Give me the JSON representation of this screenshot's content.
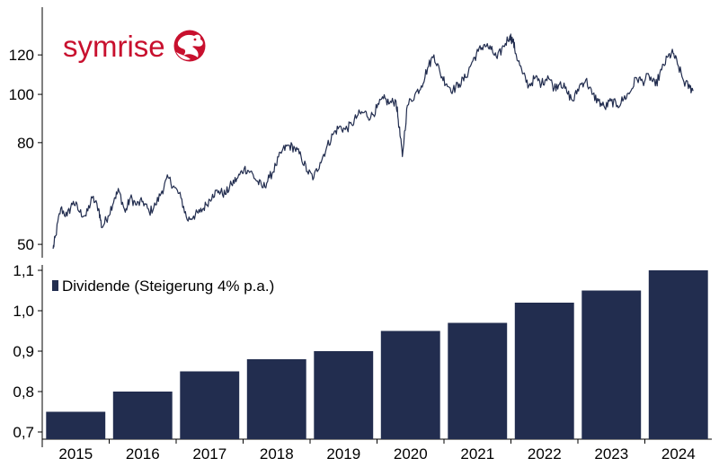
{
  "logo": {
    "text": "symrise",
    "color": "#c8102e"
  },
  "chart_data": [
    {
      "type": "line",
      "title": "",
      "ylabel": "",
      "yscale": "log",
      "yticks": [
        50,
        80,
        100,
        120
      ],
      "ylim": [
        47,
        140
      ],
      "xlim": [
        2014.55,
        2024.85
      ],
      "grid": false,
      "color": "#222d4f",
      "anchors": [
        [
          2014.58,
          49
        ],
        [
          2014.62,
          52
        ],
        [
          2014.7,
          59
        ],
        [
          2014.8,
          57
        ],
        [
          2014.9,
          61
        ],
        [
          2015.0,
          58
        ],
        [
          2015.1,
          57
        ],
        [
          2015.2,
          62
        ],
        [
          2015.3,
          59
        ],
        [
          2015.35,
          54
        ],
        [
          2015.45,
          57
        ],
        [
          2015.55,
          62
        ],
        [
          2015.62,
          64
        ],
        [
          2015.72,
          58
        ],
        [
          2015.8,
          62
        ],
        [
          2015.9,
          60
        ],
        [
          2016.0,
          61
        ],
        [
          2016.1,
          58
        ],
        [
          2016.2,
          60
        ],
        [
          2016.3,
          64
        ],
        [
          2016.4,
          68
        ],
        [
          2016.5,
          65
        ],
        [
          2016.6,
          62
        ],
        [
          2016.7,
          56
        ],
        [
          2016.8,
          57
        ],
        [
          2016.9,
          58
        ],
        [
          2017.0,
          60
        ],
        [
          2017.1,
          63
        ],
        [
          2017.2,
          64
        ],
        [
          2017.3,
          63
        ],
        [
          2017.4,
          66
        ],
        [
          2017.5,
          68
        ],
        [
          2017.6,
          71
        ],
        [
          2017.7,
          70
        ],
        [
          2017.8,
          67
        ],
        [
          2017.9,
          65
        ],
        [
          2018.0,
          68
        ],
        [
          2018.1,
          72
        ],
        [
          2018.2,
          77
        ],
        [
          2018.3,
          79
        ],
        [
          2018.4,
          78
        ],
        [
          2018.5,
          75
        ],
        [
          2018.6,
          70
        ],
        [
          2018.7,
          68
        ],
        [
          2018.8,
          73
        ],
        [
          2018.9,
          78
        ],
        [
          2019.0,
          83
        ],
        [
          2019.1,
          86
        ],
        [
          2019.2,
          85
        ],
        [
          2019.3,
          87
        ],
        [
          2019.4,
          91
        ],
        [
          2019.5,
          92
        ],
        [
          2019.6,
          90
        ],
        [
          2019.7,
          94
        ],
        [
          2019.8,
          98
        ],
        [
          2019.9,
          96
        ],
        [
          2020.0,
          97
        ],
        [
          2020.05,
          86
        ],
        [
          2020.1,
          75
        ],
        [
          2020.18,
          95
        ],
        [
          2020.3,
          100
        ],
        [
          2020.4,
          104
        ],
        [
          2020.5,
          113
        ],
        [
          2020.6,
          120
        ],
        [
          2020.7,
          110
        ],
        [
          2020.8,
          105
        ],
        [
          2020.9,
          102
        ],
        [
          2021.0,
          105
        ],
        [
          2021.1,
          108
        ],
        [
          2021.2,
          116
        ],
        [
          2021.3,
          122
        ],
        [
          2021.4,
          126
        ],
        [
          2021.5,
          123
        ],
        [
          2021.6,
          118
        ],
        [
          2021.7,
          125
        ],
        [
          2021.8,
          131
        ],
        [
          2021.85,
          128
        ],
        [
          2021.9,
          120
        ],
        [
          2022.0,
          110
        ],
        [
          2022.1,
          104
        ],
        [
          2022.2,
          108
        ],
        [
          2022.3,
          105
        ],
        [
          2022.4,
          109
        ],
        [
          2022.5,
          103
        ],
        [
          2022.6,
          106
        ],
        [
          2022.7,
          101
        ],
        [
          2022.8,
          97
        ],
        [
          2022.9,
          104
        ],
        [
          2023.0,
          107
        ],
        [
          2023.1,
          100
        ],
        [
          2023.2,
          97
        ],
        [
          2023.3,
          94
        ],
        [
          2023.4,
          97
        ],
        [
          2023.5,
          95
        ],
        [
          2023.6,
          98
        ],
        [
          2023.7,
          101
        ],
        [
          2023.8,
          108
        ],
        [
          2023.9,
          106
        ],
        [
          2024.0,
          109
        ],
        [
          2024.1,
          104
        ],
        [
          2024.2,
          112
        ],
        [
          2024.3,
          119
        ],
        [
          2024.38,
          121
        ],
        [
          2024.45,
          115
        ],
        [
          2024.55,
          106
        ],
        [
          2024.65,
          103
        ],
        [
          2024.7,
          102
        ]
      ]
    },
    {
      "type": "bar",
      "title": "",
      "legend": "Dividende (Steigerung 4% p.a.)",
      "legend_position": "top-left",
      "color": "#222d4f",
      "categories": [
        "2015",
        "2016",
        "2017",
        "2018",
        "2019",
        "2020",
        "2021",
        "2022",
        "2023",
        "2024"
      ],
      "values": [
        0.75,
        0.8,
        0.85,
        0.88,
        0.9,
        0.95,
        0.97,
        1.02,
        1.05,
        1.1
      ],
      "yticks": [
        "0,7",
        "0,8",
        "0,9",
        "1,0",
        "1,1"
      ],
      "ylim": [
        0.7,
        1.12
      ],
      "grid": false
    }
  ]
}
